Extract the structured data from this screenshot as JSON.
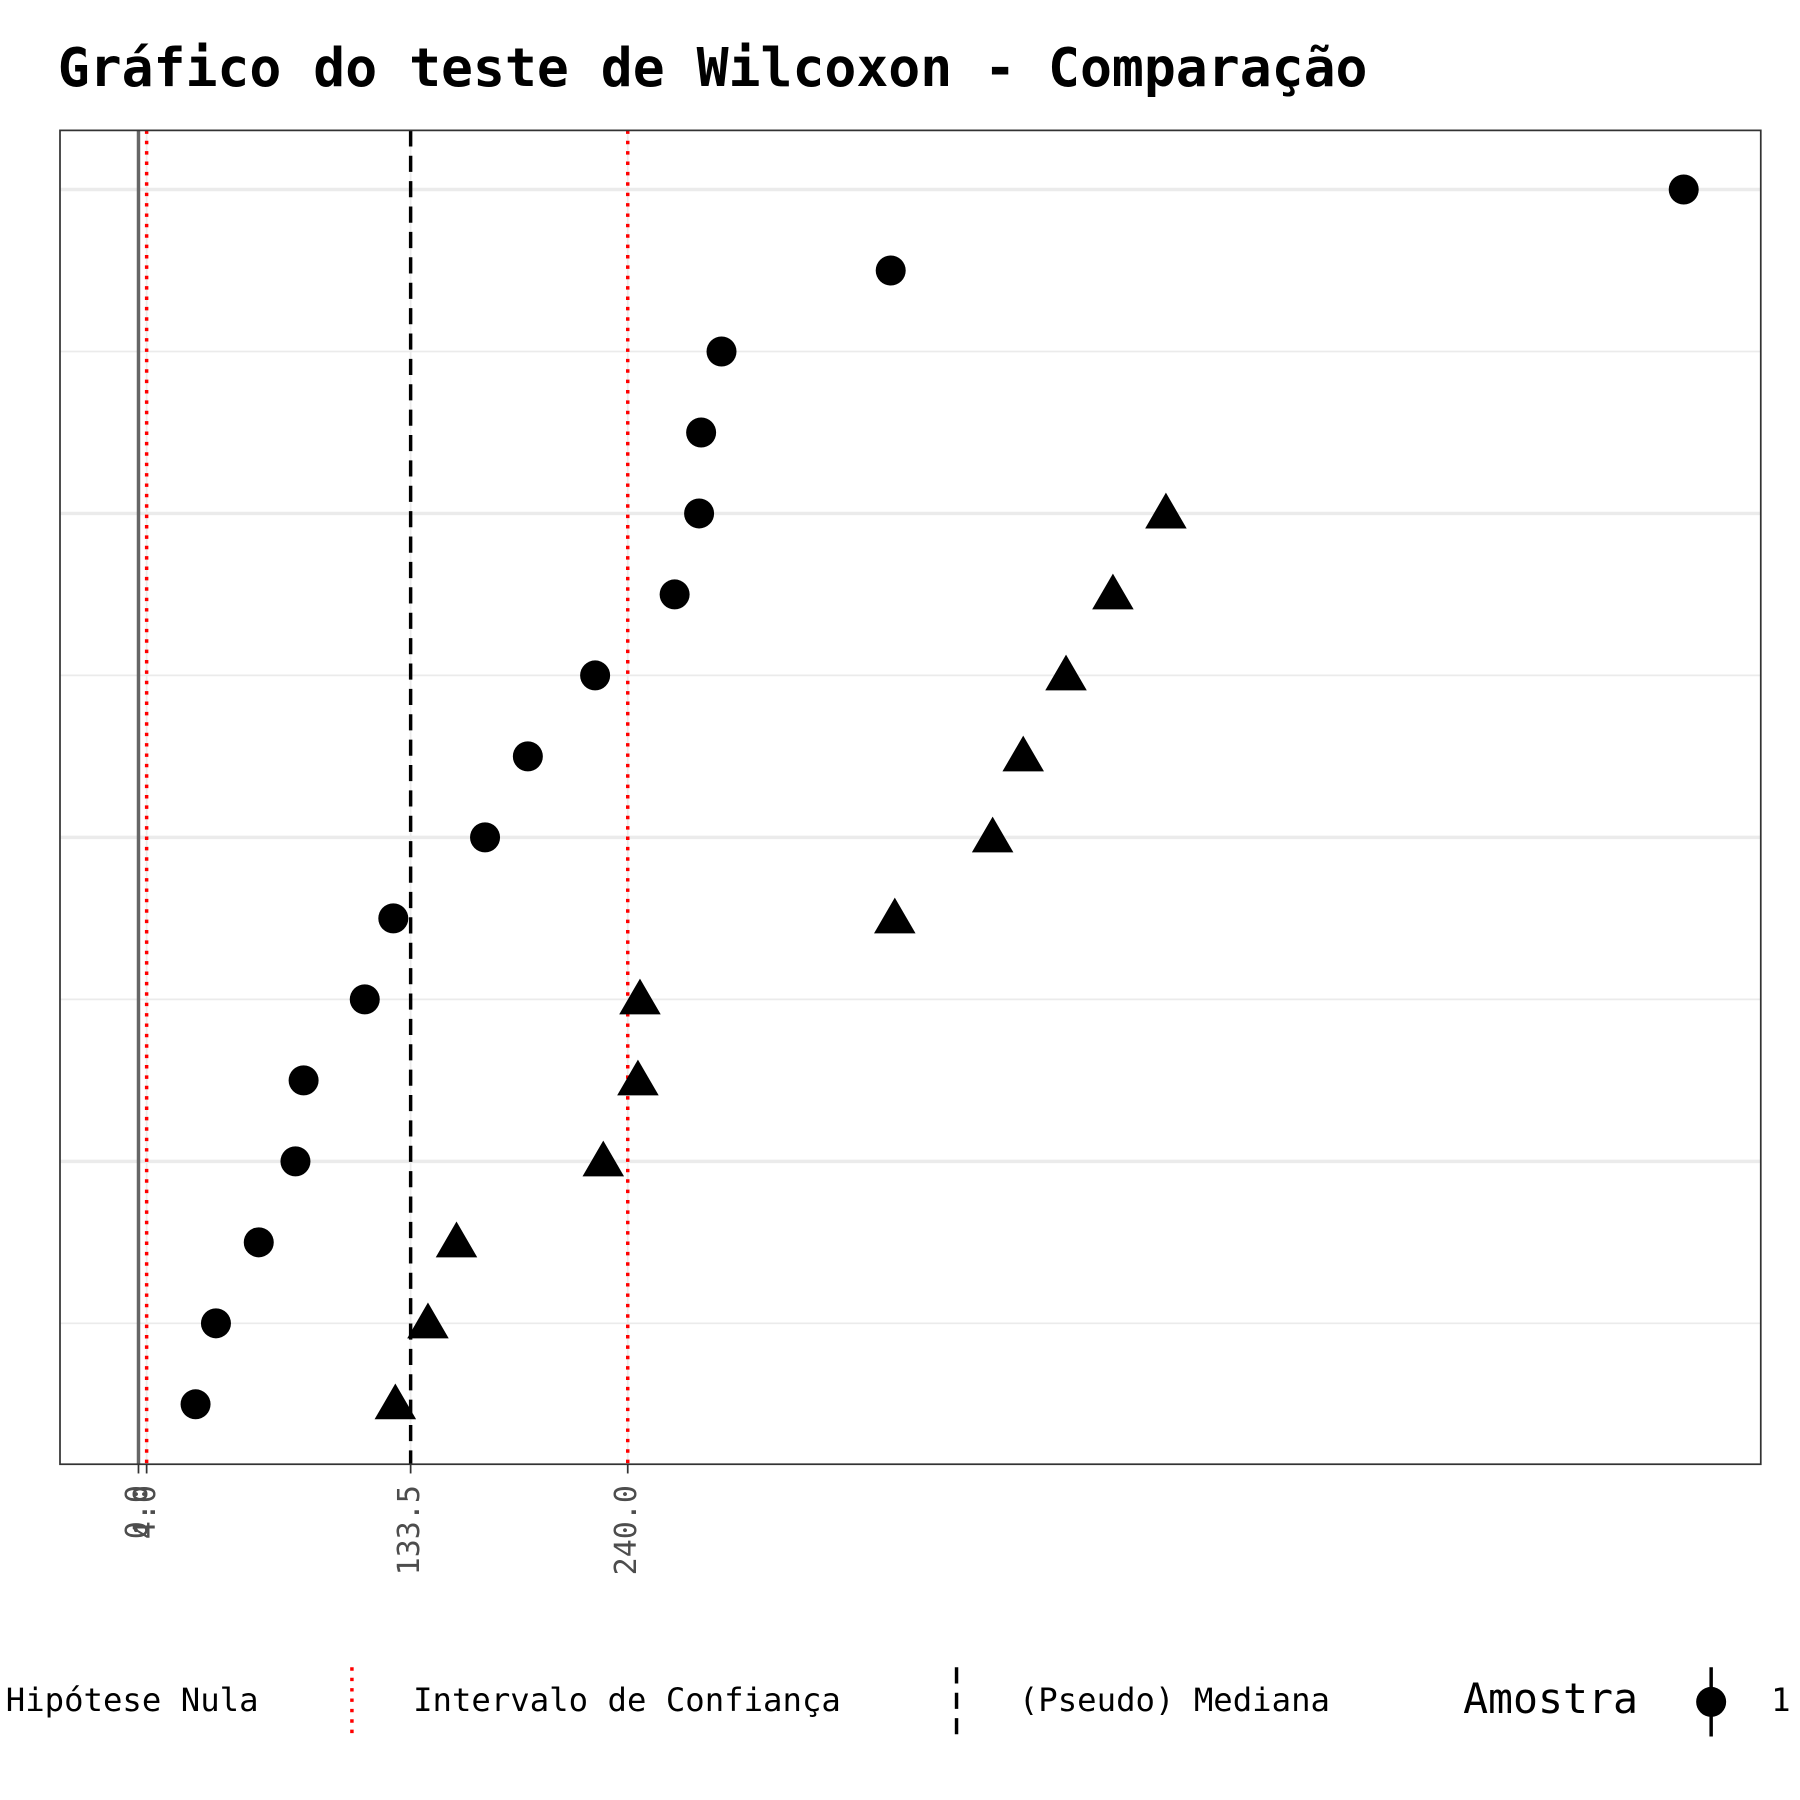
{
  "chart_data": {
    "type": "dot",
    "title": "Gráfico do teste de Wilcoxon - Comparação",
    "xlim": [
      -38.5,
      795.8
    ],
    "xticks": [
      {
        "value": 0,
        "label": "0.0"
      },
      {
        "value": 4,
        "label": "4.0"
      },
      {
        "value": 133.5,
        "label": "133.5"
      },
      {
        "value": 240,
        "label": "240.0"
      }
    ],
    "ylim": [
      0.26,
      16.73
    ],
    "y_gridlines": [
      4,
      8,
      12,
      16
    ],
    "y_minor_gridlines": [
      2,
      6,
      10,
      14
    ],
    "grid": true,
    "legend_position": "bottom",
    "legend_title": "Amostra",
    "reference_lines": [
      {
        "name": "Hipótese Nula",
        "values": [
          0
        ],
        "color": "#666666",
        "style": "solid"
      },
      {
        "name": "Intervalo de Confiança",
        "values": [
          4,
          240
        ],
        "color": "#ff0000",
        "style": "dotted"
      },
      {
        "name": "(Pseudo) Mediana",
        "values": [
          133.5
        ],
        "color": "#000000",
        "style": "dashed"
      }
    ],
    "series": [
      {
        "name": "1",
        "shape": "circle",
        "color": "#000000",
        "values": [
          28,
          38,
          59,
          77,
          81,
          111,
          125,
          170,
          191,
          224,
          263,
          275,
          276,
          286,
          369,
          758
        ]
      },
      {
        "shape": "triangle",
        "color": "#000000",
        "values": [
          126,
          142,
          156,
          228,
          245,
          246,
          371,
          419,
          434,
          455,
          478,
          504
        ]
      }
    ]
  }
}
